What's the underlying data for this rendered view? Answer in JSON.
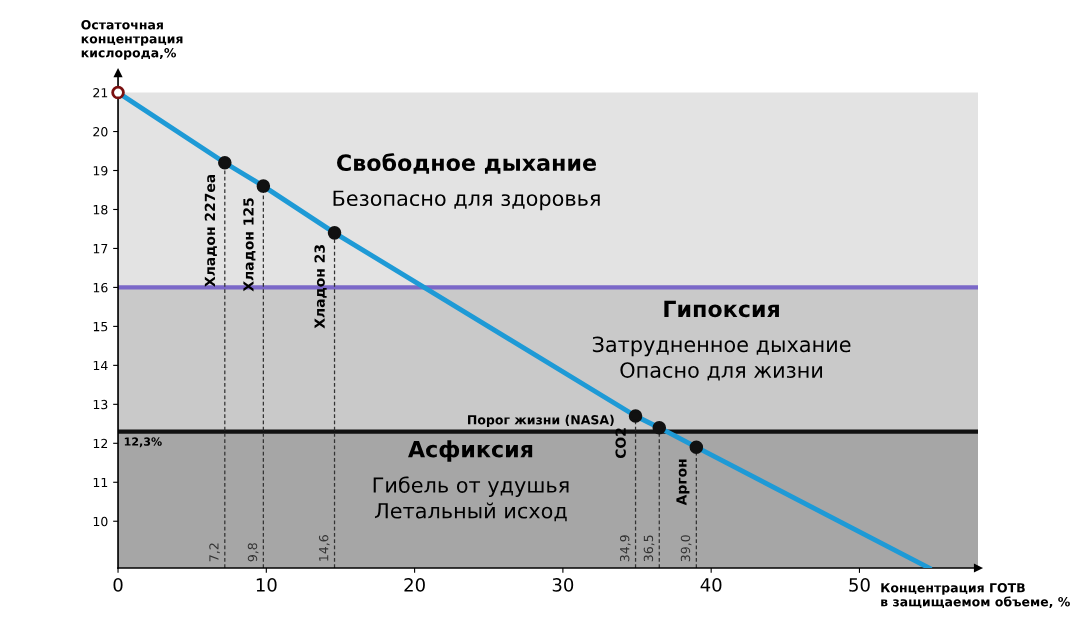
{
  "chart_data": {
    "type": "line",
    "xlabel": "Концентрация ГОТВ\nв защищаемом объеме, %",
    "ylabel": "Остаточная\nконцентрация\nкислорода,%",
    "xlim": [
      0,
      58
    ],
    "ylim": [
      8.8,
      21.5
    ],
    "xticks": [
      0,
      10,
      20,
      30,
      40,
      50
    ],
    "yticks": [
      10,
      11,
      12,
      13,
      14,
      15,
      16,
      17,
      18,
      19,
      20,
      21
    ],
    "grid": false,
    "series": [
      {
        "color": "#1e9ad6",
        "x": [
          0,
          7.2,
          9.8,
          14.6,
          34.9,
          36.5,
          39.0,
          54.7
        ],
        "values": [
          21,
          19.2,
          18.6,
          17.4,
          12.7,
          12.4,
          11.9,
          8.8
        ]
      },
      {
        "type": "scatter",
        "color": "#111111",
        "colors": [
          "#ffffff",
          "#111111",
          "#111111",
          "#111111",
          "#111111",
          "#111111",
          "#111111"
        ],
        "marker": "circle",
        "x": [
          0,
          7.2,
          9.8,
          14.6,
          34.9,
          36.5,
          39.0
        ],
        "values": [
          21,
          19.2,
          18.6,
          17.4,
          12.7,
          12.4,
          11.9
        ]
      }
    ],
    "bands": [
      {
        "axis": "y",
        "from": 16,
        "to": 21,
        "color": "#e3e3e3",
        "label": "Свободное дыхание\nБезопасно для здоровья"
      },
      {
        "axis": "y",
        "from": 12.3,
        "to": 16,
        "color": "#c9c9c9",
        "label": "Гипоксия\nЗатрудненное дыхание\nОпасно для жизни"
      },
      {
        "axis": "y",
        "from": 8.8,
        "to": 12.3,
        "color": "#a6a6a6",
        "label": "Асфиксия\nГибель от удушья\nЛетальный исход"
      }
    ],
    "ref_lines": [
      {
        "axis": "y",
        "value": 16,
        "color": "#7b68c8",
        "line_style": "solid"
      },
      {
        "axis": "y",
        "value": 12.3,
        "label": "Порог жизни (NASA)",
        "color": "#111111",
        "line_style": "solid"
      },
      {
        "axis": "x",
        "value": 7.2,
        "label": "7,2",
        "color": "#333333",
        "line_style": "dashed"
      },
      {
        "axis": "x",
        "value": 9.8,
        "label": "9,8",
        "color": "#333333",
        "line_style": "dashed"
      },
      {
        "axis": "x",
        "value": 14.6,
        "label": "14,6",
        "color": "#333333",
        "line_style": "dashed"
      },
      {
        "axis": "x",
        "value": 34.9,
        "label": "34,9",
        "color": "#333333",
        "line_style": "dashed"
      },
      {
        "axis": "x",
        "value": 36.5,
        "label": "36,5",
        "color": "#333333",
        "line_style": "dashed"
      },
      {
        "axis": "x",
        "value": 39.0,
        "label": "39,0",
        "color": "#333333",
        "line_style": "dashed"
      }
    ],
    "annotations": [
      {
        "text": "Хладон 227еа",
        "x": 7.2,
        "y": 19.2
      },
      {
        "text": "Хладон 125",
        "x": 9.8,
        "y": 18.6
      },
      {
        "text": "Хладон 23",
        "x": 14.6,
        "y": 17.4
      },
      {
        "text": "CO2",
        "x": 34.9,
        "y": 12.7
      },
      {
        "text": "Аргон",
        "x": 39.0,
        "y": 11.9
      },
      {
        "text": "12,3%",
        "x": 0,
        "y": 12.3
      }
    ]
  }
}
